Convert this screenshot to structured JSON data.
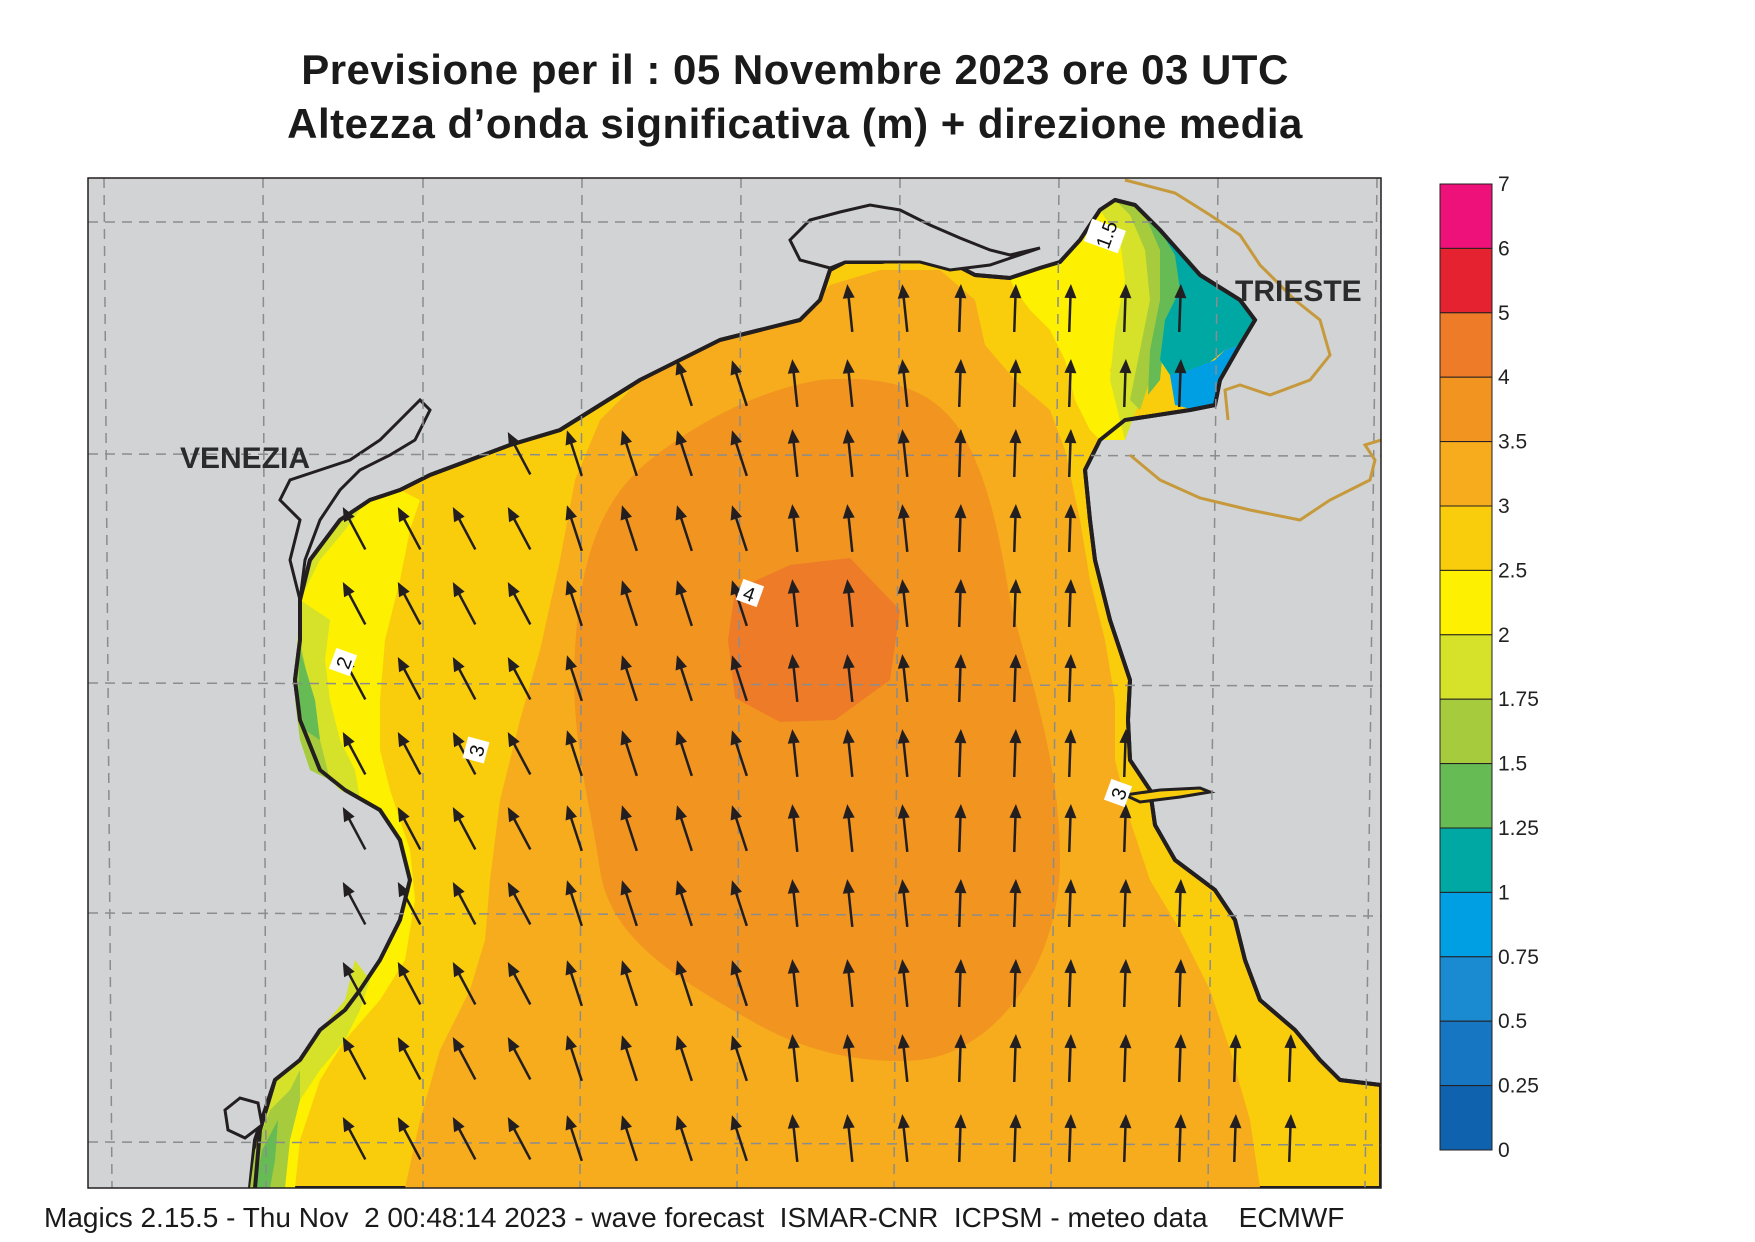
{
  "title": {
    "line1": "Previsione per il  :  05 Novembre  2023   ore 03 UTC",
    "line2": "Altezza d’onda significativa (m) + direzione media"
  },
  "places": {
    "venezia": "VENEZIA",
    "trieste": "TRIESTE"
  },
  "contour_labels": [
    "1.5",
    "2",
    "3",
    "3",
    "4"
  ],
  "legend": {
    "labels": [
      "7",
      "6",
      "5",
      "4",
      "3.5",
      "3",
      "2.5",
      "2",
      "1.75",
      "1.5",
      "1.25",
      "1",
      "0.75",
      "0.5",
      "0.25",
      "0"
    ],
    "colors": [
      "#ed1179",
      "#e52230",
      "#ee7b28",
      "#f29420",
      "#f6ac1c",
      "#facd0c",
      "#fdf000",
      "#d6e22a",
      "#a6cb3c",
      "#66bb55",
      "#00a8a4",
      "#009fe3",
      "#1a8bd0",
      "#1676c1",
      "#0f62ad"
    ]
  },
  "colors": {
    "land": "#d1d3d4",
    "coast": "#231f20",
    "border": "#c69a3c",
    "arrow": "#231f20"
  },
  "footer": "Magics 2.15.5 - Thu Nov  2 00:48:14 2023 - wave forecast  ISMAR-CNR  ICPSM - meteo data    ECMWF"
}
